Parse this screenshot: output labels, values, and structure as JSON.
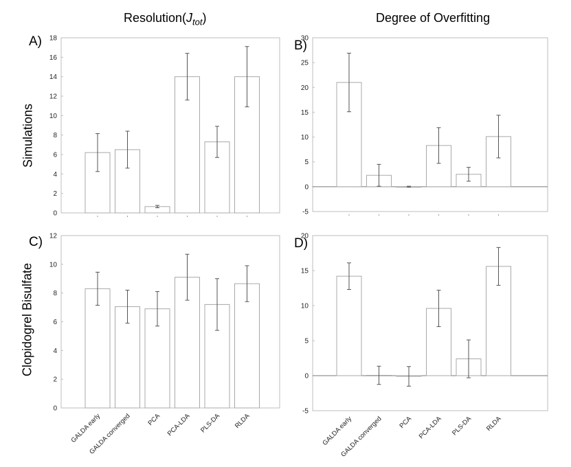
{
  "titles": {
    "left_prefix": "Resolution(",
    "left_sym": "J",
    "left_sub": "tot",
    "left_suffix": ")",
    "right": "Degree of Overfitting"
  },
  "row_labels": [
    "Simulations",
    "Clopidogrel Bisulfate"
  ],
  "panel_labels": [
    "A)",
    "B)",
    "C)",
    "D)"
  ],
  "categories": [
    "GALDA early",
    "GALDA converged",
    "PCA",
    "PCA-LDA",
    "PLS-DA",
    "RLDA"
  ],
  "chart_data": [
    {
      "type": "bar",
      "panel": "A)",
      "title": "Resolution(J_tot)",
      "row": "Simulations",
      "categories": [
        "GALDA early",
        "GALDA converged",
        "PCA",
        "PCA-LDA",
        "PLS-DA",
        "RLDA"
      ],
      "values": [
        6.2,
        6.5,
        0.65,
        14.0,
        7.3,
        14.0
      ],
      "errors": [
        1.95,
        1.9,
        0.12,
        2.4,
        1.6,
        3.1
      ],
      "ylim": [
        0,
        18
      ],
      "yticks": [
        0,
        2,
        4,
        6,
        8,
        10,
        12,
        14,
        16,
        18
      ],
      "show_xticklabels": false
    },
    {
      "type": "bar",
      "panel": "B)",
      "title": "Degree of Overfitting",
      "row": "Simulations",
      "categories": [
        "GALDA early",
        "GALDA converged",
        "PCA",
        "PCA-LDA",
        "PLS-DA",
        "RLDA"
      ],
      "values": [
        21.0,
        2.3,
        0.0,
        8.3,
        2.5,
        10.1
      ],
      "errors": [
        5.9,
        2.2,
        0.1,
        3.6,
        1.4,
        4.3
      ],
      "ylim": [
        -5,
        30
      ],
      "yticks": [
        -5,
        0,
        5,
        10,
        15,
        20,
        25,
        30
      ],
      "show_xticklabels": false
    },
    {
      "type": "bar",
      "panel": "C)",
      "title": "Resolution(J_tot)",
      "row": "Clopidogrel Bisulfate",
      "categories": [
        "GALDA early",
        "GALDA converged",
        "PCA",
        "PCA-LDA",
        "PLS-DA",
        "RLDA"
      ],
      "values": [
        8.3,
        7.05,
        6.9,
        9.1,
        7.2,
        8.65
      ],
      "errors": [
        1.15,
        1.15,
        1.2,
        1.6,
        1.8,
        1.25
      ],
      "ylim": [
        0,
        12
      ],
      "yticks": [
        0,
        2,
        4,
        6,
        8,
        10,
        12
      ],
      "show_xticklabels": true
    },
    {
      "type": "bar",
      "panel": "D)",
      "title": "Degree of Overfitting",
      "row": "Clopidogrel Bisulfate",
      "categories": [
        "GALDA early",
        "GALDA converged",
        "PCA",
        "PCA-LDA",
        "PLS-DA",
        "RLDA"
      ],
      "values": [
        14.2,
        0.05,
        -0.1,
        9.6,
        2.4,
        15.6
      ],
      "errors": [
        1.9,
        1.3,
        1.4,
        2.6,
        2.7,
        2.7
      ],
      "ylim": [
        -5,
        20
      ],
      "yticks": [
        -5,
        0,
        5,
        10,
        15,
        20
      ],
      "show_xticklabels": true
    }
  ]
}
